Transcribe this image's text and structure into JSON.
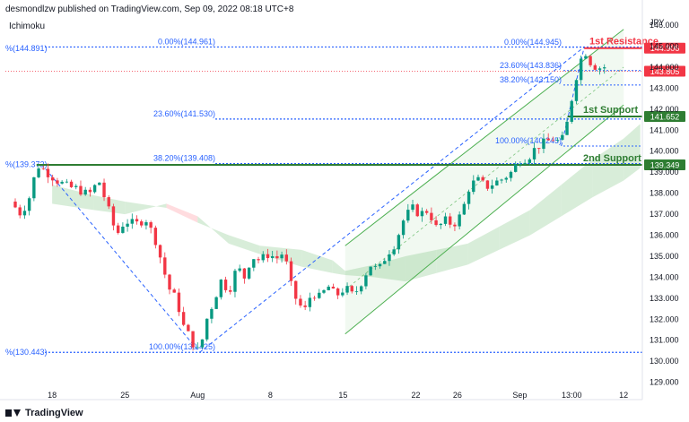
{
  "header": {
    "publisher_text": "desmondlzw published on TradingView.com, Sep 09, 2022 08:18 UTC+8"
  },
  "indicator": {
    "label": "Ichimoku"
  },
  "footer": {
    "brand": "TradingView"
  },
  "colors": {
    "up": "#089981",
    "down": "#f23645",
    "support": "#2e7d32",
    "fib": "#2962ff",
    "channel": "#4caf50",
    "cloud_up": "#c8e6c9",
    "cloud_down": "#ffcdd2"
  },
  "chart_data": {
    "type": "candlestick",
    "currency_label": "JPY",
    "y_ticks": [
      129.0,
      130.0,
      131.0,
      132.0,
      133.0,
      134.0,
      135.0,
      136.0,
      137.0,
      138.0,
      139.0,
      140.0,
      141.0,
      142.0,
      143.0,
      144.0,
      145.0,
      146.0
    ],
    "y_range": [
      128.6,
      146.6
    ],
    "x_ticks": [
      {
        "label": "18",
        "day": 18
      },
      {
        "label": "25",
        "day": 25
      },
      {
        "label": "Aug",
        "day": 32
      },
      {
        "label": "8",
        "day": 39
      },
      {
        "label": "15",
        "day": 46
      },
      {
        "label": "22",
        "day": 53
      },
      {
        "label": "26",
        "day": 57
      },
      {
        "label": "Sep",
        "day": 63
      },
      {
        "label": "13:00",
        "day": 68
      },
      {
        "label": "12",
        "day": 73
      }
    ],
    "x_range": [
      13.5,
      74.8
    ],
    "price_path": [
      [
        14.0,
        137.6
      ],
      [
        15.0,
        137.0
      ],
      [
        16.0,
        138.0
      ],
      [
        16.5,
        139.37
      ],
      [
        17.5,
        139.0
      ],
      [
        18.5,
        138.6
      ],
      [
        19.5,
        138.3
      ],
      [
        20.5,
        138.2
      ],
      [
        21.5,
        137.9
      ],
      [
        22.5,
        138.6
      ],
      [
        23.3,
        137.4
      ],
      [
        24.2,
        136.0
      ],
      [
        25.0,
        136.7
      ],
      [
        26.0,
        136.5
      ],
      [
        27.0,
        136.8
      ],
      [
        28.0,
        135.7
      ],
      [
        28.6,
        134.6
      ],
      [
        29.2,
        133.5
      ],
      [
        30.0,
        132.9
      ],
      [
        30.6,
        131.7
      ],
      [
        31.2,
        131.2
      ],
      [
        31.8,
        130.6
      ],
      [
        32.2,
        130.43
      ],
      [
        32.8,
        131.9
      ],
      [
        33.5,
        132.8
      ],
      [
        34.3,
        133.9
      ],
      [
        35.0,
        133.3
      ],
      [
        35.8,
        134.5
      ],
      [
        36.5,
        134.0
      ],
      [
        37.2,
        135.0
      ],
      [
        38.0,
        134.8
      ],
      [
        38.8,
        135.1
      ],
      [
        39.6,
        134.9
      ],
      [
        40.3,
        135.2
      ],
      [
        41.0,
        133.6
      ],
      [
        41.6,
        132.8
      ],
      [
        42.3,
        132.4
      ],
      [
        43.0,
        133.3
      ],
      [
        43.8,
        133.0
      ],
      [
        44.5,
        133.6
      ],
      [
        45.3,
        133.1
      ],
      [
        46.2,
        133.5
      ],
      [
        47.0,
        133.1
      ],
      [
        47.8,
        133.8
      ],
      [
        48.6,
        134.6
      ],
      [
        49.4,
        134.3
      ],
      [
        50.2,
        135.1
      ],
      [
        51.0,
        135.6
      ],
      [
        51.8,
        136.7
      ],
      [
        52.6,
        137.3
      ],
      [
        53.4,
        137.0
      ],
      [
        54.2,
        137.2
      ],
      [
        55.0,
        136.3
      ],
      [
        55.8,
        136.7
      ],
      [
        56.6,
        136.5
      ],
      [
        57.4,
        137.0
      ],
      [
        58.2,
        138.4
      ],
      [
        59.0,
        138.6
      ],
      [
        59.8,
        138.3
      ],
      [
        60.6,
        138.5
      ],
      [
        61.4,
        138.7
      ],
      [
        62.2,
        139.0
      ],
      [
        63.0,
        139.6
      ],
      [
        63.8,
        139.7
      ],
      [
        64.6,
        140.2
      ],
      [
        65.4,
        140.4
      ],
      [
        66.2,
        140.6
      ],
      [
        67.0,
        140.4
      ],
      [
        67.6,
        141.4
      ],
      [
        68.0,
        142.5
      ],
      [
        68.4,
        143.5
      ],
      [
        68.8,
        144.2
      ],
      [
        69.2,
        144.96
      ],
      [
        69.6,
        144.3
      ],
      [
        70.0,
        144.2
      ],
      [
        70.5,
        143.9
      ],
      [
        71.0,
        144.1
      ],
      [
        71.5,
        143.8
      ]
    ],
    "ichimoku_cloud": [
      [
        18.0,
        138.4,
        137.5
      ],
      [
        22.0,
        137.9,
        137.2
      ],
      [
        25.0,
        137.6,
        137.0
      ],
      [
        29.0,
        137.3,
        137.5
      ],
      [
        32.0,
        136.6,
        136.9
      ],
      [
        35.0,
        136.0,
        135.6
      ],
      [
        38.0,
        135.5,
        135.1
      ],
      [
        42.0,
        135.3,
        134.5
      ],
      [
        45.0,
        134.8,
        134.2
      ],
      [
        46.2,
        134.3,
        134.1
      ],
      [
        49.0,
        134.6,
        134.0
      ],
      [
        52.0,
        135.0,
        133.8
      ],
      [
        55.0,
        135.3,
        134.2
      ],
      [
        58.0,
        135.6,
        134.6
      ],
      [
        61.0,
        136.4,
        135.3
      ],
      [
        64.0,
        137.2,
        136.0
      ],
      [
        67.0,
        138.4,
        136.9
      ],
      [
        70.0,
        139.6,
        137.8
      ],
      [
        73.0,
        140.6,
        138.6
      ],
      [
        74.6,
        141.3,
        139.2
      ]
    ],
    "channel": {
      "upper": [
        [
          46.2,
          135.5
        ],
        [
          73.0,
          145.8
        ]
      ],
      "lower": [
        [
          46.2,
          131.3
        ],
        [
          73.0,
          142.2
        ]
      ],
      "mid": [
        [
          46.2,
          133.4
        ],
        [
          73.0,
          144.0
        ]
      ]
    },
    "fib_left": {
      "start": [
        17.0,
        139.372
      ],
      "end": [
        32.2,
        130.425
      ],
      "levels": [
        {
          "label": "0.00%(144.961)",
          "price": 144.961
        },
        {
          "label": "23.60%(141.530)",
          "price": 141.53
        },
        {
          "label": "38.20%(139.408)",
          "price": 139.408
        },
        {
          "label": "100.00%(130.425)",
          "price": 130.425
        }
      ]
    },
    "fib_right": {
      "levels": [
        {
          "label": "0.00%(144.945)",
          "price": 144.945
        },
        {
          "label": "23.60%(143.836)",
          "price": 143.836
        },
        {
          "label": "38.20%(143.150)",
          "price": 143.15
        },
        {
          "label": "100.00%(140.245)",
          "price": 140.245
        }
      ]
    },
    "left_labels": [
      {
        "label": "%(144.891)",
        "price": 144.891
      },
      {
        "label": "%(139.372)",
        "price": 139.372
      },
      {
        "label": "%(130.443)",
        "price": 130.443
      }
    ],
    "zones": [
      {
        "label": "1st Resistance",
        "price": 144.906,
        "badge": "144.906",
        "color": "#f23645"
      },
      {
        "label": "1st Support",
        "price": 141.652,
        "badge": "141.652",
        "color": "#2e7d32"
      },
      {
        "label": "2nd Support",
        "price": 139.349,
        "badge": "139.349",
        "color": "#2e7d32"
      }
    ],
    "last_price": {
      "price": 143.805,
      "badge": "143.805"
    }
  }
}
